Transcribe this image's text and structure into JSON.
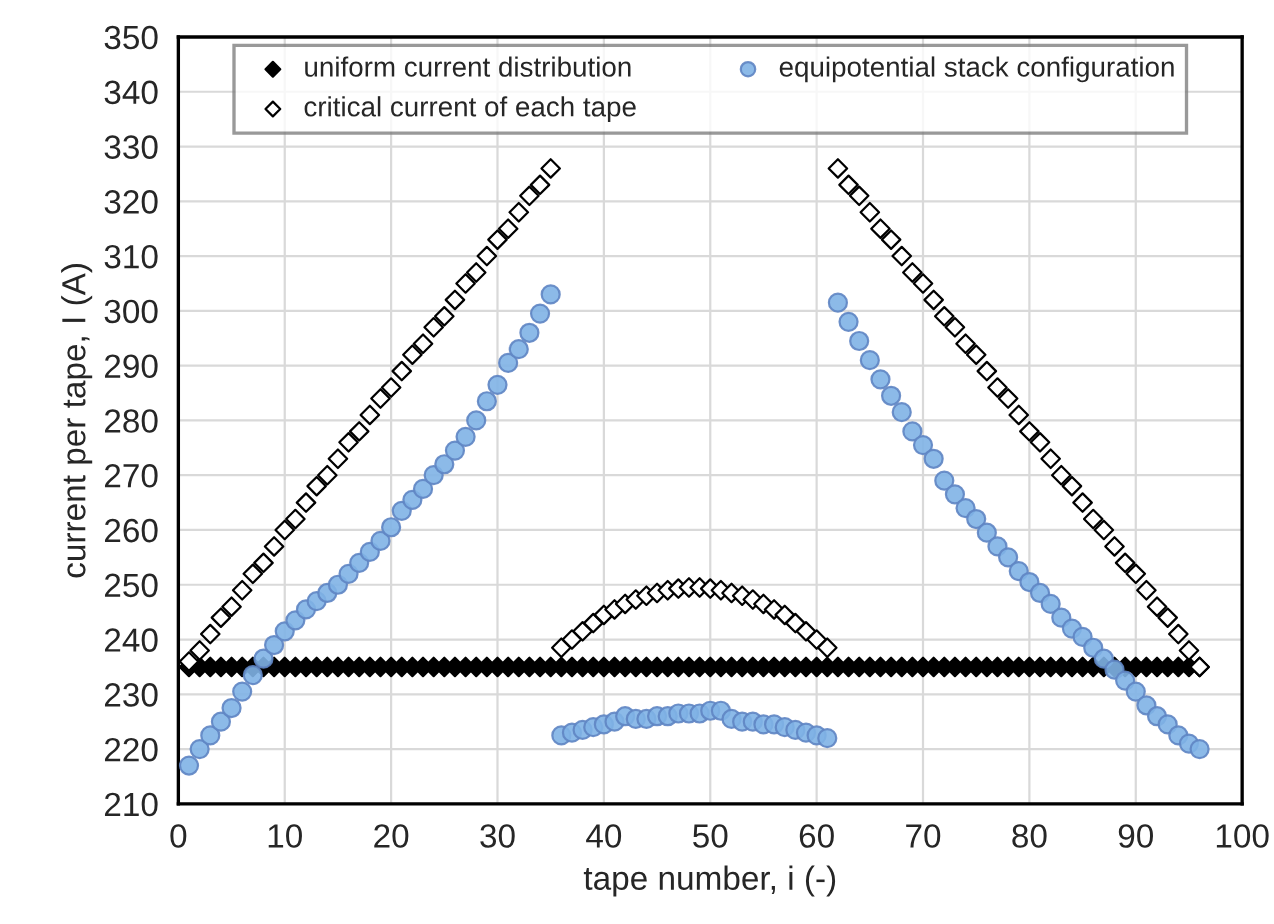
{
  "chart_data": {
    "type": "scatter",
    "xlabel": "tape number, i (-)",
    "ylabel": "current per tape, I (A)",
    "x": [
      1,
      2,
      3,
      4,
      5,
      6,
      7,
      8,
      9,
      10,
      11,
      12,
      13,
      14,
      15,
      16,
      17,
      18,
      19,
      20,
      21,
      22,
      23,
      24,
      25,
      26,
      27,
      28,
      29,
      30,
      31,
      32,
      33,
      34,
      35,
      36,
      37,
      38,
      39,
      40,
      41,
      42,
      43,
      44,
      45,
      46,
      47,
      48,
      49,
      50,
      51,
      52,
      53,
      54,
      55,
      56,
      57,
      58,
      59,
      60,
      61,
      62,
      63,
      64,
      65,
      66,
      67,
      68,
      69,
      70,
      71,
      72,
      73,
      74,
      75,
      76,
      77,
      78,
      79,
      80,
      81,
      82,
      83,
      84,
      85,
      86,
      87,
      88,
      89,
      90,
      91,
      92,
      93,
      94,
      95,
      96
    ],
    "series": [
      {
        "name": "uniform current distribution",
        "color": "#000000",
        "marker": "diamond",
        "values": [
          235,
          235,
          235,
          235,
          235,
          235,
          235,
          235,
          235,
          235,
          235,
          235,
          235,
          235,
          235,
          235,
          235,
          235,
          235,
          235,
          235,
          235,
          235,
          235,
          235,
          235,
          235,
          235,
          235,
          235,
          235,
          235,
          235,
          235,
          235,
          235,
          235,
          235,
          235,
          235,
          235,
          235,
          235,
          235,
          235,
          235,
          235,
          235,
          235,
          235,
          235,
          235,
          235,
          235,
          235,
          235,
          235,
          235,
          235,
          235,
          235,
          235,
          235,
          235,
          235,
          235,
          235,
          235,
          235,
          235,
          235,
          235,
          235,
          235,
          235,
          235,
          235,
          235,
          235,
          235,
          235,
          235,
          235,
          235,
          235,
          235,
          235,
          235,
          235,
          235,
          235,
          235,
          235,
          235,
          235,
          235
        ]
      },
      {
        "name": "critical current of each tape",
        "color": "#ffffff",
        "marker": "diamond",
        "values": [
          236,
          238,
          241,
          244,
          246,
          249,
          252,
          254,
          257,
          260,
          262,
          265,
          268,
          270,
          273,
          276,
          278,
          281,
          284,
          286,
          289,
          292,
          294,
          297,
          299,
          302,
          305,
          307,
          310,
          313,
          315,
          318,
          321,
          323,
          326,
          238.5,
          240,
          241.5,
          243,
          244.5,
          245.5,
          246.5,
          247.3,
          248,
          248.5,
          249,
          249.3,
          249.5,
          249.5,
          249.3,
          249,
          248.5,
          248,
          247.3,
          246.5,
          245.5,
          244.5,
          243,
          241.5,
          240,
          238.5,
          326,
          323,
          321,
          318,
          315,
          313,
          310,
          307,
          305,
          302,
          299,
          297,
          294,
          292,
          289,
          286,
          284,
          281,
          278,
          276,
          273,
          270,
          268,
          265,
          262,
          260,
          257,
          254,
          252,
          249,
          246,
          244,
          241,
          238,
          235
        ]
      },
      {
        "name": "equipotential stack configuration",
        "color": "#7fb2e5",
        "marker": "circle",
        "values": [
          217,
          220,
          222.5,
          225,
          227.5,
          230.5,
          233.5,
          236.5,
          239,
          241.5,
          243.5,
          245.5,
          247,
          248.5,
          250,
          252,
          254,
          256,
          258,
          260.5,
          263.5,
          265.5,
          267.5,
          270,
          272,
          274.5,
          277,
          280,
          283.5,
          286.5,
          290.5,
          293,
          296,
          299.5,
          303,
          222.5,
          223,
          223.5,
          224,
          224.5,
          225,
          226,
          225.5,
          225.5,
          226,
          226,
          226.5,
          226.5,
          226.5,
          227,
          227,
          225.5,
          225,
          225,
          224.5,
          224.5,
          224,
          223.5,
          223,
          222.5,
          222,
          301.5,
          298,
          294.5,
          291,
          287.5,
          284.5,
          281.5,
          278,
          275.5,
          273,
          269,
          266.5,
          264,
          262,
          259.5,
          257,
          255,
          252.5,
          250.5,
          248.5,
          246.5,
          244,
          242,
          240.5,
          238.5,
          236.5,
          234.5,
          232.5,
          230.5,
          228,
          226,
          224.5,
          222.5,
          221,
          220
        ]
      }
    ],
    "xlim": [
      0,
      100
    ],
    "xticks": [
      0,
      10,
      20,
      30,
      40,
      50,
      60,
      70,
      80,
      90,
      100
    ],
    "ylim": [
      210,
      350
    ],
    "yticks": [
      210,
      220,
      230,
      240,
      250,
      260,
      270,
      280,
      290,
      300,
      310,
      320,
      330,
      340,
      350
    ],
    "grid": true,
    "legend": "top"
  }
}
